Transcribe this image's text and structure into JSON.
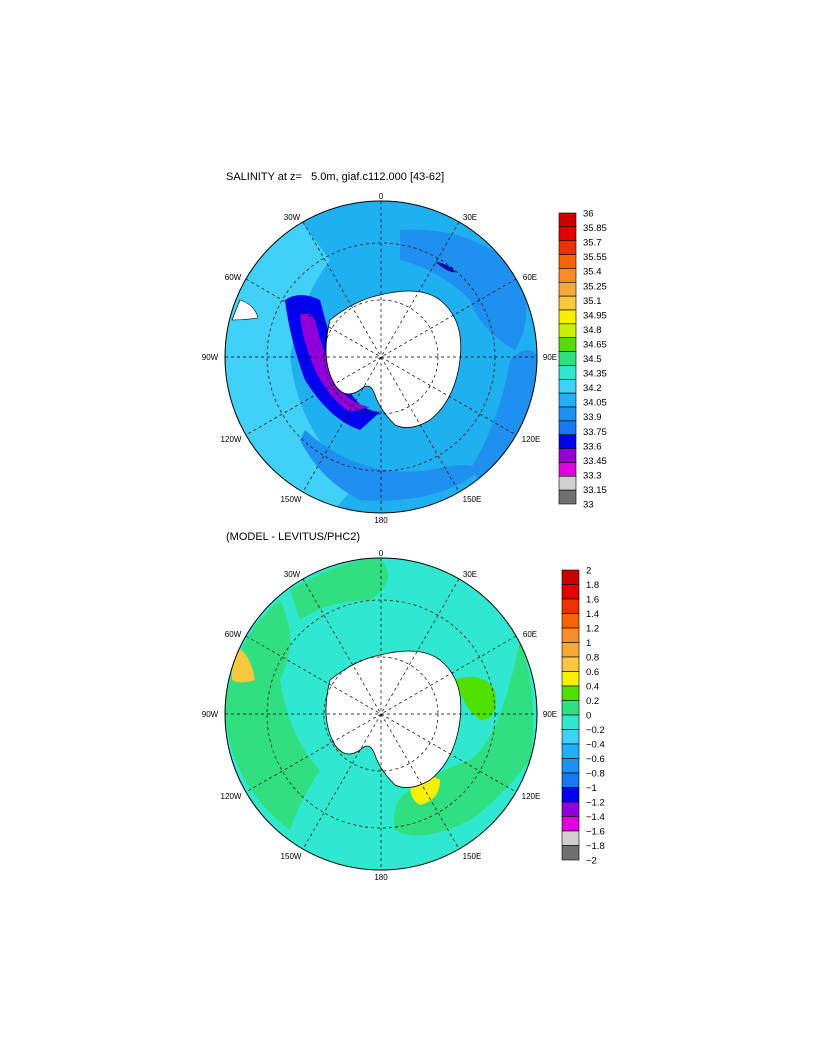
{
  "top_panel": {
    "title": "SALINITY at z=   5.0m, giaf.c112.000 [43-62]",
    "lon_labels": {
      "n": "0",
      "nne": "30E",
      "ene": "60E",
      "e": "90E",
      "ese": "120E",
      "sse": "150E",
      "s": "180",
      "ssw": "150W",
      "wsw": "120W",
      "w": "90W",
      "wnw": "60W",
      "nnw": "30W"
    },
    "colorbar": {
      "labels": [
        "36",
        "35.85",
        "35.7",
        "35.55",
        "35.4",
        "35.25",
        "35.1",
        "34.95",
        "34.8",
        "34.65",
        "34.5",
        "34.35",
        "34.2",
        "34.05",
        "33.9",
        "33.75",
        "33.6",
        "33.45",
        "33.3",
        "33.15",
        "33"
      ],
      "colors": [
        "#c80000",
        "#e00000",
        "#f03000",
        "#f86400",
        "#f88c28",
        "#f8a838",
        "#f8c840",
        "#f8f000",
        "#c8f000",
        "#50e000",
        "#30e080",
        "#30e8d0",
        "#40d0f8",
        "#20b0f8",
        "#2090f0",
        "#1878f0",
        "#0000f0",
        "#9000d8",
        "#e000e0",
        "#d0d0d0",
        "#707070"
      ]
    }
  },
  "bottom_panel": {
    "title": "(MODEL - LEVITUS/PHC2)",
    "lon_labels": {
      "n": "0",
      "nne": "30E",
      "ene": "60E",
      "e": "90E",
      "ese": "120E",
      "sse": "150E",
      "s": "180",
      "ssw": "150W",
      "wsw": "120W",
      "w": "90W",
      "wnw": "60W",
      "nnw": "30W"
    },
    "colorbar": {
      "labels": [
        "2",
        "1.8",
        "1.6",
        "1.4",
        "1.2",
        "1",
        "0.8",
        "0.6",
        "0.4",
        "0.2",
        "0",
        "−0.2",
        "−0.4",
        "−0.6",
        "−0.8",
        "−1",
        "−1.2",
        "−1.4",
        "−1.6",
        "−1.8",
        "−2"
      ],
      "colors": [
        "#c80000",
        "#e00000",
        "#f03000",
        "#f86400",
        "#f88c28",
        "#f8a838",
        "#f8c840",
        "#f8f000",
        "#50e000",
        "#30e080",
        "#30e8d0",
        "#40d0f8",
        "#20b0f8",
        "#2090f0",
        "#1878f0",
        "#0000f0",
        "#9000d8",
        "#e000e0",
        "#d0d0d0",
        "#707070"
      ]
    }
  }
}
